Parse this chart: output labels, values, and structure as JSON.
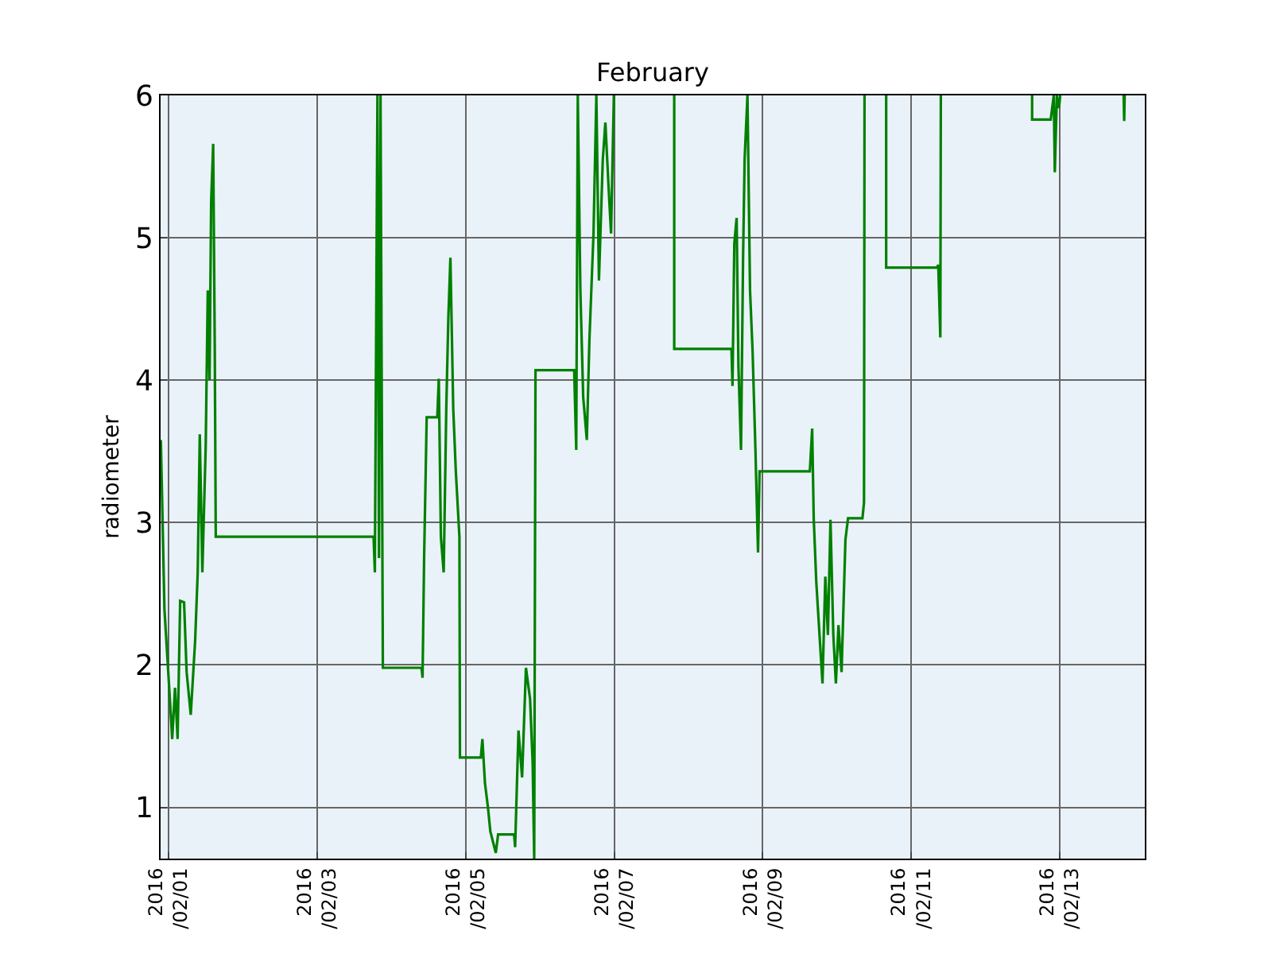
{
  "chart_data": {
    "type": "line",
    "title": "February",
    "ylabel": "radiometer",
    "xlim": [
      "2016-01-31T21:25",
      "2016-02-14T03:30"
    ],
    "ylim": [
      0.64,
      6
    ],
    "xticks": [
      {
        "value": "2016-02-01",
        "label": "2016\n/02/01"
      },
      {
        "value": "2016-02-03",
        "label": "2016\n/02/03"
      },
      {
        "value": "2016-02-05",
        "label": "2016\n/02/05"
      },
      {
        "value": "2016-02-07",
        "label": "2016\n/02/07"
      },
      {
        "value": "2016-02-09",
        "label": "2016\n/02/09"
      },
      {
        "value": "2016-02-11",
        "label": "2016\n/02/11"
      },
      {
        "value": "2016-02-13",
        "label": "2016\n/02/13"
      }
    ],
    "yticks": [
      1,
      2,
      3,
      4,
      5,
      6
    ],
    "grid": true,
    "marker": "none",
    "line_style": "solid",
    "series": [
      {
        "color": "#008000",
        "x": [
          "2016-01-31T21:30",
          "2016-01-31T22:40",
          "2016-02-01T00:20",
          "2016-02-01T01:10",
          "2016-02-01T02:05",
          "2016-02-01T02:55",
          "2016-02-01T03:45",
          "2016-02-01T05:00",
          "2016-02-01T05:50",
          "2016-02-01T07:10",
          "2016-02-01T08:35",
          "2016-02-01T09:25",
          "2016-02-01T10:05",
          "2016-02-01T10:55",
          "2016-02-01T12:00",
          "2016-02-01T12:40",
          "2016-02-01T13:15",
          "2016-02-01T13:45",
          "2016-02-01T14:25",
          "2016-02-01T14:55",
          "2016-02-01T15:15",
          "2016-02-03T18:15",
          "2016-02-03T18:40",
          "2016-02-03T19:30",
          "2016-02-03T20:00",
          "2016-02-03T20:30",
          "2016-02-03T21:15",
          "2016-02-04T09:45",
          "2016-02-04T10:05",
          "2016-02-04T10:35",
          "2016-02-04T11:25",
          "2016-02-04T14:50",
          "2016-02-04T15:20",
          "2016-02-04T16:00",
          "2016-02-04T16:55",
          "2016-02-04T17:45",
          "2016-02-04T18:25",
          "2016-02-04T19:05",
          "2016-02-04T20:00",
          "2016-02-04T20:50",
          "2016-02-04T22:00",
          "2016-02-04T22:10",
          "2016-02-05T04:55",
          "2016-02-05T05:25",
          "2016-02-05T06:15",
          "2016-02-05T07:10",
          "2016-02-05T08:00",
          "2016-02-05T09:45",
          "2016-02-05T10:30",
          "2016-02-05T15:40",
          "2016-02-05T16:00",
          "2016-02-05T17:05",
          "2016-02-05T18:15",
          "2016-02-05T19:30",
          "2016-02-05T20:50",
          "2016-02-05T21:40",
          "2016-02-05T22:10",
          "2016-02-05T22:35",
          "2016-02-06T11:05",
          "2016-02-06T11:45",
          "2016-02-06T12:15",
          "2016-02-06T13:05",
          "2016-02-06T14:00",
          "2016-02-06T15:10",
          "2016-02-06T16:00",
          "2016-02-06T17:20",
          "2016-02-06T18:15",
          "2016-02-06T19:05",
          "2016-02-06T20:20",
          "2016-02-06T21:10",
          "2016-02-06T22:10",
          "2016-02-06T23:00",
          "2016-02-06T23:55",
          "2016-02-07T12:00",
          "2016-02-07T19:25",
          "2016-02-07T19:25",
          "2016-02-08T13:55",
          "2016-02-08T14:15",
          "2016-02-08T14:50",
          "2016-02-08T15:35",
          "2016-02-08T16:10",
          "2016-02-08T17:00",
          "2016-02-08T17:40",
          "2016-02-08T18:10",
          "2016-02-08T19:05",
          "2016-02-08T19:55",
          "2016-02-08T20:45",
          "2016-02-08T21:40",
          "2016-02-08T22:30",
          "2016-02-08T23:00",
          "2016-02-09T15:15",
          "2016-02-09T16:00",
          "2016-02-09T16:30",
          "2016-02-09T17:20",
          "2016-02-09T19:20",
          "2016-02-09T20:15",
          "2016-02-09T21:05",
          "2016-02-09T21:55",
          "2016-02-09T22:50",
          "2016-02-09T23:40",
          "2016-02-10T00:30",
          "2016-02-10T01:30",
          "2016-02-10T02:45",
          "2016-02-10T03:35",
          "2016-02-10T08:15",
          "2016-02-10T08:45",
          "2016-02-10T08:55",
          "2016-02-10T12:00",
          "2016-02-10T15:55",
          "2016-02-10T15:55",
          "2016-02-11T08:20",
          "2016-02-11T08:45",
          "2016-02-11T09:25",
          "2016-02-11T09:35",
          "2016-02-12T00:00",
          "2016-02-12T15:05",
          "2016-02-12T15:05",
          "2016-02-12T21:05",
          "2016-02-12T22:05",
          "2016-02-12T22:25",
          "2016-02-12T23:05",
          "2016-02-12T23:45",
          "2016-02-13T00:10",
          "2016-02-13T12:00",
          "2016-02-13T20:40",
          "2016-02-13T20:50",
          "2016-02-13T21:00"
        ],
        "values": [
          3.58,
          2.39,
          1.79,
          1.48,
          1.84,
          1.48,
          2.45,
          2.44,
          1.95,
          1.65,
          2.17,
          2.65,
          3.62,
          2.65,
          3.54,
          4.63,
          4.0,
          5.25,
          5.66,
          4.25,
          2.9,
          2.9,
          2.65,
          6,
          2.75,
          6,
          1.98,
          1.98,
          1.91,
          2.75,
          3.74,
          3.74,
          4.01,
          2.9,
          2.65,
          3.8,
          4.44,
          4.86,
          3.8,
          3.36,
          2.9,
          1.35,
          1.35,
          1.48,
          1.17,
          1.01,
          0.83,
          0.68,
          0.81,
          0.81,
          0.72,
          1.54,
          1.21,
          1.98,
          1.76,
          1.31,
          0.64,
          4.07,
          4.07,
          3.51,
          6,
          4.63,
          3.88,
          3.58,
          4.28,
          5.03,
          6,
          4.7,
          5.55,
          5.81,
          5.37,
          5.03,
          6,
          null,
          6,
          4.22,
          4.22,
          3.96,
          4.96,
          5.14,
          4.1,
          3.51,
          4.86,
          5.55,
          6,
          4.63,
          4.2,
          3.51,
          2.79,
          3.36,
          3.36,
          3.66,
          3.03,
          2.58,
          1.87,
          2.62,
          2.21,
          3.02,
          2.21,
          1.87,
          2.28,
          1.95,
          2.88,
          3.03,
          3.03,
          3.14,
          6,
          null,
          6,
          4.79,
          4.79,
          4.81,
          4.3,
          6,
          null,
          6,
          5.83,
          5.83,
          6,
          5.46,
          6,
          5.91,
          6,
          null,
          6,
          5.82,
          6
        ]
      }
    ]
  }
}
